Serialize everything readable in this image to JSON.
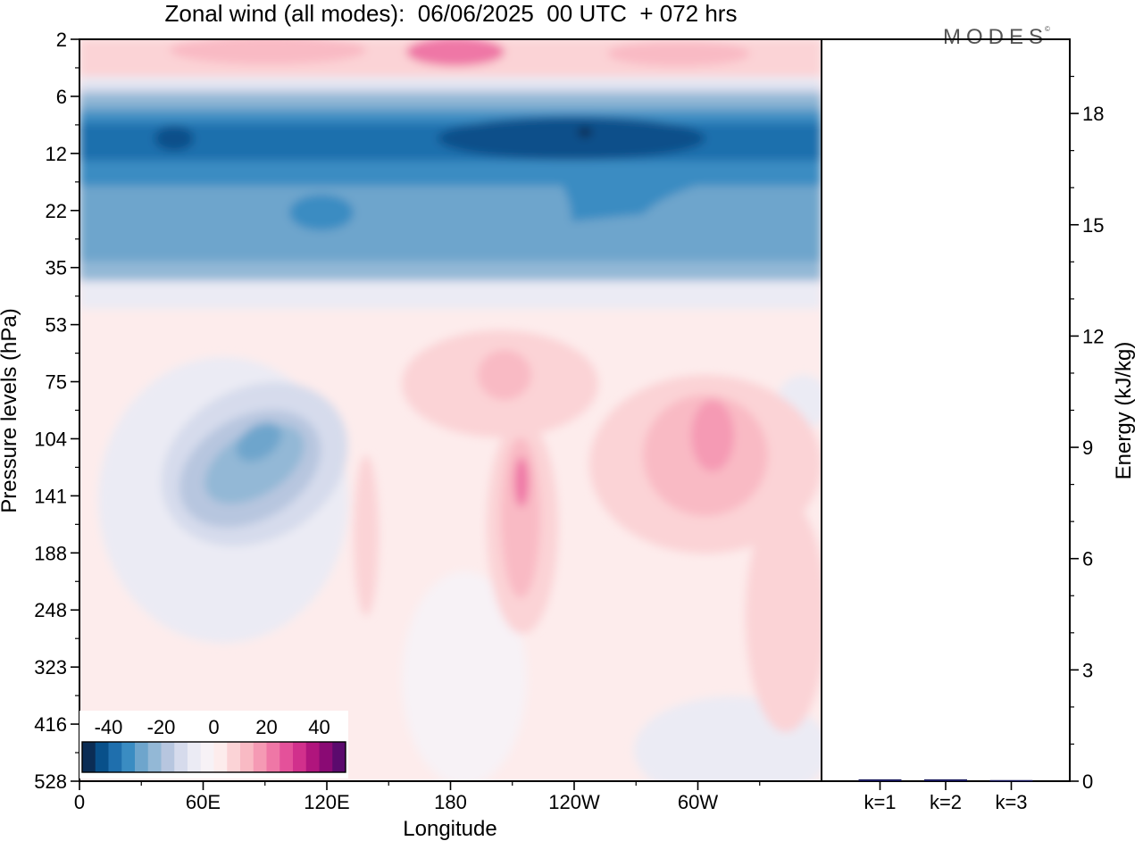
{
  "title": "Zonal wind (all modes):  06/06/2025  00 UTC  + 072 hrs",
  "logo": {
    "text": "MODES",
    "mark": "©"
  },
  "chart_data": [
    {
      "type": "heatmap",
      "title": "Zonal wind (all modes):  06/06/2025  00 UTC  + 072 hrs",
      "xlabel": "Longitude",
      "ylabel": "Pressure levels (hPa)",
      "x_ticks": [
        "0",
        "60E",
        "120E",
        "180",
        "120W",
        "60W"
      ],
      "x_tick_degrees": [
        0,
        60,
        120,
        180,
        240,
        300
      ],
      "x_range": [
        0,
        360
      ],
      "y_ticks": [
        "2",
        "6",
        "12",
        "22",
        "35",
        "53",
        "75",
        "104",
        "141",
        "188",
        "248",
        "323",
        "416",
        "528"
      ],
      "colorbar": {
        "tick_labels": [
          "-40",
          "-20",
          "0",
          "20",
          "40"
        ],
        "tick_values": [
          -40,
          -20,
          0,
          20,
          40
        ],
        "levels": [
          -50,
          -45,
          -40,
          -35,
          -30,
          -25,
          -20,
          -15,
          -10,
          -5,
          0,
          5,
          10,
          15,
          20,
          25,
          30,
          35,
          40,
          45,
          50
        ],
        "colors": [
          "#0b2d55",
          "#08508a",
          "#1f6fad",
          "#3a8cc2",
          "#6ea5cc",
          "#93b8d6",
          "#b7c6df",
          "#d6dbec",
          "#ebebf4",
          "#f7f2f6",
          "#fdecec",
          "#fbd3d6",
          "#f9bac4",
          "#f59ab4",
          "#ef77a6",
          "#e4519a",
          "#d1308c",
          "#b0157d",
          "#8a0a74",
          "#5b0a6d"
        ]
      },
      "grid": false,
      "fields": [
        {
          "name": "easterly_jet_core",
          "lon_range": [
            0,
            360
          ],
          "level_range": [
            "6",
            "22"
          ],
          "value": -35
        },
        {
          "name": "upper_westerlies",
          "lon_range": [
            0,
            360
          ],
          "level_range": [
            "2",
            "6"
          ],
          "value": 10
        },
        {
          "name": "easterly_lower_center",
          "lon_range": [
            35,
            130
          ],
          "level_range": [
            "75",
            "248"
          ],
          "value": -20
        },
        {
          "name": "westerly_maximum_1",
          "lon_range": [
            200,
            225
          ],
          "level_range": [
            "104",
            "248"
          ],
          "value": 20
        },
        {
          "name": "westerly_maximum_2",
          "lon_range": [
            275,
            320
          ],
          "level_range": [
            "75",
            "188"
          ],
          "value": 25
        }
      ]
    },
    {
      "type": "bar",
      "title": "",
      "xlabel": "",
      "ylabel": "Energy (kJ/kg)",
      "categories": [
        "k=1",
        "k=2",
        "k=3"
      ],
      "values": [
        0.05,
        0.05,
        0.03
      ],
      "ylim": [
        0,
        20
      ],
      "y_ticks": [
        0,
        3,
        6,
        9,
        12,
        15,
        18
      ],
      "grid": false
    }
  ]
}
